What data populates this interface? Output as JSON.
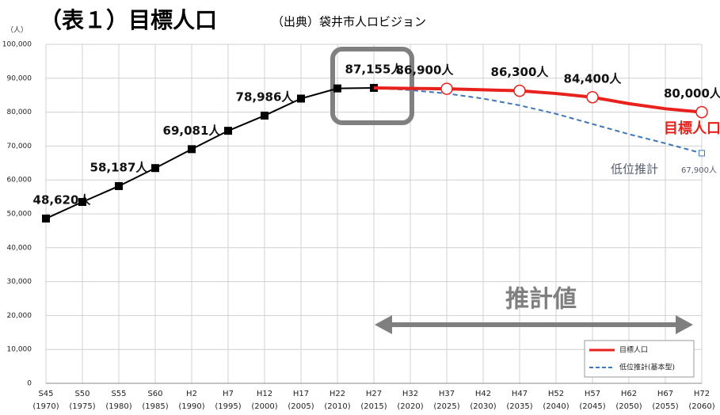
{
  "chart_data": {
    "type": "line",
    "title": "（表１）目標人口",
    "subtitle": "（出典）袋井市人ロビジョン",
    "y_unit": "（人）",
    "categories": [
      "S45",
      "S50",
      "S55",
      "S60",
      "H2",
      "H7",
      "H12",
      "H17",
      "H22",
      "H27",
      "H32",
      "H37",
      "H42",
      "H47",
      "H52",
      "H57",
      "H62",
      "H67",
      "H72"
    ],
    "category_years": [
      "(1970)",
      "(1975)",
      "(1980)",
      "(1985)",
      "(1990)",
      "(1995)",
      "(2000)",
      "(2005)",
      "(2010)",
      "(2015)",
      "(2020)",
      "(2025)",
      "(2030)",
      "(2035)",
      "(2040)",
      "(2045)",
      "(2050)",
      "(2055)",
      "(2060)"
    ],
    "series": [
      {
        "color": "#000000",
        "marker": "square",
        "values": [
          48620,
          53500,
          58187,
          63500,
          69081,
          74500,
          78986,
          84000,
          87000,
          87155,
          null,
          null,
          null,
          null,
          null,
          null,
          null,
          null,
          null
        ],
        "value_labels": [
          "48,620人",
          null,
          "58,187人",
          null,
          "69,081人",
          null,
          "78,986人",
          null,
          null,
          "87,155人",
          null,
          null,
          null,
          null,
          null,
          null,
          null,
          null,
          null
        ]
      },
      {
        "name": "目標人口",
        "color": "#e8211c",
        "marker": "circle",
        "values": [
          null,
          null,
          null,
          null,
          null,
          null,
          null,
          null,
          null,
          87155,
          87000,
          86900,
          86600,
          86300,
          85500,
          84400,
          82500,
          81000,
          80000
        ],
        "value_labels": [
          null,
          null,
          null,
          null,
          null,
          null,
          null,
          null,
          null,
          null,
          null,
          "86,900人",
          null,
          "86,300人",
          null,
          "84,400人",
          null,
          null,
          "80,000人"
        ]
      },
      {
        "name": "低位推計(基本型)",
        "color": "#3f76b8",
        "dashed": true,
        "marker": "open-square-end",
        "values": [
          null,
          null,
          null,
          null,
          null,
          null,
          null,
          null,
          null,
          87155,
          86500,
          85500,
          84000,
          82000,
          79500,
          76500,
          73500,
          70800,
          67900
        ]
      }
    ],
    "annotations": [
      "目標人口",
      "低位推計",
      "67,900人",
      "推計値"
    ],
    "ylim": [
      0,
      100000
    ],
    "yticks": [
      0,
      {
        "value": 10000,
        "label": "10,000"
      },
      {
        "value": 20000,
        "label": "20,000"
      },
      {
        "value": 30000,
        "label": "30,000"
      },
      {
        "value": 40000,
        "label": "40,000"
      },
      {
        "value": 50000,
        "label": "50,000"
      },
      {
        "value": 60000,
        "label": "60,000"
      },
      {
        "value": 70000,
        "label": "70,000"
      },
      {
        "value": 80000,
        "label": "80,000"
      },
      {
        "value": 90000,
        "label": "90,000"
      },
      {
        "value": 100000,
        "label": "100,000"
      }
    ],
    "grid": true,
    "legend": "lower right"
  }
}
